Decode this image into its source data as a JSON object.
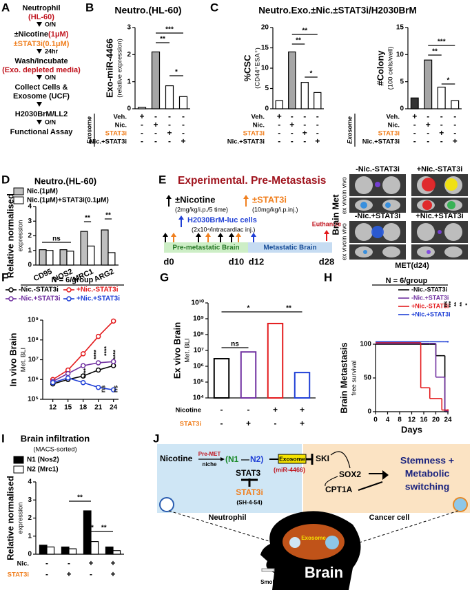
{
  "panel_labels": [
    "A",
    "B",
    "C",
    "D",
    "E",
    "F",
    "G",
    "H",
    "I",
    "J"
  ],
  "panel_a": {
    "steps": [
      "Neutrophil",
      "(HL-60)",
      "O/N",
      "±Nicotine",
      "(1μM)",
      "±STAT3i",
      "(0.1μM)",
      "24hr",
      "Wash/Incubate",
      "(Exo. depleted media)",
      "O/N",
      "Collect Cells &",
      "Exosome (UCF)",
      "H2030BrM/LL2",
      "O/N",
      "Functional Assay"
    ]
  },
  "panel_c": {
    "title": "Neutro.Exo.±Nic.±STAT3i/H2030BrM"
  },
  "panel_e": {
    "title": "Experimental. Pre-Metastasis",
    "nicotine": "±Nicotine",
    "nicotine_dose": "(2mg/kg/i.p./5 time)",
    "stat3i": "±STAT3i",
    "stat3i_dose": "(10mg/kg/i.p.inj.)",
    "cells": "H2030BrM-luc cells",
    "cells_dose": "(2x10⁴/intracardiac inj.)",
    "euthanize": "Euthanize",
    "phases": [
      "Pre-metastatic Brain",
      "Metastatic Brain"
    ],
    "days": [
      "d0",
      "d10",
      "d12",
      "d28"
    ],
    "groups": [
      "-Nic.-STAT3i",
      "+Nic.-STAT3i",
      "-Nic.+STAT3i",
      "+Nic.+STAT3i"
    ],
    "views": [
      "in vivo",
      "ex vivo"
    ],
    "side_label": "Brain Met",
    "caption": "MET(d24)"
  },
  "panel_j": {
    "nicotine": "Nicotine",
    "pre_met": "Pre-MET",
    "niche": "niche",
    "n1": "(N1",
    "n2": "N2)",
    "stat3": "STAT3",
    "stat3i": "STAT3i",
    "inhibitor": "(SH-4-54)",
    "exosome": "Exosome",
    "mirna": "(miR-4466)",
    "ski": "SKI",
    "sox2": "SOX2",
    "cpt1a": "CPT1A",
    "outcome": [
      "Stemness +",
      "Metabolic",
      "switching"
    ],
    "neutrophil": "Neutrophil",
    "cancer_cell": "Cancer cell",
    "brain": "Brain",
    "smoking": "Smoking"
  },
  "chart_data": [
    {
      "type": "bar",
      "title": "Neutro.(HL-60)",
      "ylabel": [
        "Exo-miR-4466",
        "(relative expression)"
      ],
      "values": [
        0.05,
        2.1,
        0.85,
        0.45
      ],
      "colors": [
        "#ffffff",
        "#a6a6a6",
        "#ffffff",
        "#ffffff"
      ],
      "ylim": [
        0,
        3
      ],
      "yticks": [
        0,
        1,
        2,
        3
      ],
      "annotations": [
        "***",
        "**",
        "*"
      ],
      "group_label": "Exosome",
      "conditions": [
        {
          "label": "Veh.",
          "signs": [
            "+",
            "-",
            "-",
            "-"
          ]
        },
        {
          "label": "Nic.",
          "signs": [
            "-",
            "+",
            "-",
            "-"
          ]
        },
        {
          "label": "STAT3i",
          "color": "#f07f1e",
          "signs": [
            "-",
            "-",
            "+",
            "-"
          ]
        },
        {
          "label": "Nic.+STAT3i",
          "signs": [
            "-",
            "-",
            "-",
            "+"
          ]
        }
      ]
    },
    {
      "type": "bar",
      "ylabel": [
        "%CSC",
        "(CD44⁺ESA⁺)"
      ],
      "values": [
        2,
        14,
        6.5,
        4
      ],
      "colors": [
        "#ffffff",
        "#a6a6a6",
        "#ffffff",
        "#ffffff"
      ],
      "ylim": [
        0,
        20
      ],
      "yticks": [
        0,
        5,
        10,
        15,
        20
      ],
      "annotations": [
        "**",
        "**",
        "*"
      ],
      "conditions": [
        {
          "label": "Veh.",
          "signs": [
            "+",
            "-",
            "-",
            "-"
          ]
        },
        {
          "label": "Nic.",
          "signs": [
            "-",
            "+",
            "-",
            "-"
          ]
        },
        {
          "label": "STAT3i",
          "color": "#f07f1e",
          "signs": [
            "-",
            "-",
            "+",
            "-"
          ]
        },
        {
          "label": "Nic.+STAT3i",
          "signs": [
            "-",
            "-",
            "-",
            "+"
          ]
        }
      ]
    },
    {
      "type": "bar",
      "ylabel": [
        "#Colony",
        "(100 cells/well)"
      ],
      "values": [
        2,
        9,
        4,
        1.5
      ],
      "colors": [
        "#333333",
        "#a6a6a6",
        "#ffffff",
        "#ffffff"
      ],
      "ylim": [
        0,
        15
      ],
      "yticks": [
        0,
        5,
        10,
        15
      ],
      "annotations": [
        "***",
        "**",
        "*"
      ],
      "group_label": "Exosome",
      "conditions": [
        {
          "label": "Veh.",
          "signs": [
            "+",
            "-",
            "-",
            "-"
          ]
        },
        {
          "label": "Nic.",
          "signs": [
            "-",
            "+",
            "-",
            "-"
          ]
        },
        {
          "label": "STAT3i",
          "color": "#f07f1e",
          "signs": [
            "-",
            "-",
            "+",
            "-"
          ]
        },
        {
          "label": "Nic.+STAT3i",
          "signs": [
            "-",
            "-",
            "-",
            "+"
          ]
        }
      ]
    },
    {
      "type": "bar",
      "title": "Neutro.(HL-60)",
      "ylabel": [
        "Relative normalised",
        "expression"
      ],
      "categories": [
        "CD95",
        "NOS2",
        "MRC1",
        "ARG2"
      ],
      "series": [
        {
          "name": "Nic.(1μM)",
          "color": "#bfbfbf",
          "values": [
            1.05,
            1.05,
            2.3,
            2.4
          ]
        },
        {
          "name": "Nic.(1μM)+STAT3i(0.1μM)",
          "color": "#ffffff",
          "values": [
            1.0,
            0.95,
            1.3,
            0.85
          ]
        }
      ],
      "ylim": [
        0,
        4
      ],
      "yticks": [
        0,
        1,
        2,
        3,
        4
      ],
      "annotations": [
        "ns",
        "**",
        "**"
      ]
    },
    {
      "type": "line",
      "title": "N = 6/group",
      "ylabel": [
        "In vivo Brain",
        "Met. BLI"
      ],
      "log": true,
      "x": [
        12,
        15,
        18,
        21,
        24
      ],
      "xlim": [
        10,
        25
      ],
      "xticks": [
        12,
        15,
        18,
        21,
        24
      ],
      "ylim": [
        100000,
        1000000000
      ],
      "yticks": [
        {
          "value": 100000,
          "label": "10⁵"
        },
        {
          "value": 1000000,
          "label": "10⁶"
        },
        {
          "value": 10000000,
          "label": "10⁷"
        },
        {
          "value": 100000000,
          "label": "10⁸"
        },
        {
          "value": 1000000000,
          "label": "10⁹"
        }
      ],
      "series": [
        {
          "name": "-Nic.-STAT3i",
          "color": "#000000",
          "values": [
            600000,
            1000000,
            1500000,
            3000000,
            5000000
          ]
        },
        {
          "name": "+Nic.-STAT3i",
          "color": "#e31a1c",
          "values": [
            1000000,
            3000000,
            20000000,
            150000000,
            900000000
          ]
        },
        {
          "name": "-Nic.+STAT3i",
          "color": "#7030a0",
          "values": [
            800000,
            2000000,
            5000000,
            7000000,
            8000000
          ]
        },
        {
          "name": "+Nic.+STAT3i",
          "color": "#1f3fd6",
          "values": [
            700000,
            1200000,
            700000,
            400000,
            300000
          ]
        }
      ],
      "annotations": [
        "****",
        "****",
        "****",
        "****",
        "ns",
        "ns"
      ]
    },
    {
      "type": "bar",
      "ylabel": [
        "Ex vivo Brain",
        "Met. BLI"
      ],
      "log": true,
      "values": [
        3000000,
        8000000,
        500000000,
        400000
      ],
      "colors": [
        "#ffffff",
        "#ffffff",
        "#ffffff",
        "#ffffff"
      ],
      "outlines": [
        "#000000",
        "#7030a0",
        "#e31a1c",
        "#1f3fd6"
      ],
      "ylim": [
        10000,
        10000000000
      ],
      "yticks": [
        {
          "value": 10000,
          "label": "10⁴"
        },
        {
          "value": 100000,
          "label": "10⁵"
        },
        {
          "value": 1000000,
          "label": "10⁶"
        },
        {
          "value": 10000000,
          "label": "10⁷"
        },
        {
          "value": 100000000,
          "label": "10⁸"
        },
        {
          "value": 1000000000,
          "label": "10⁹"
        },
        {
          "value": 10000000000,
          "label": "10¹⁰"
        }
      ],
      "annotations": [
        "*",
        "ns",
        "**"
      ],
      "conditions": [
        {
          "label": "Nicotine",
          "signs": [
            "-",
            "-",
            "+",
            "+"
          ]
        },
        {
          "label": "STAT3i",
          "color": "#f07f1e",
          "signs": [
            "-",
            "+",
            "-",
            "+"
          ]
        }
      ]
    },
    {
      "type": "step",
      "title": "N = 6/group",
      "ylabel": [
        "Brain Metastasis",
        "free survival"
      ],
      "xlabel": "Days",
      "x": [
        0,
        15,
        18,
        20,
        22,
        23,
        24
      ],
      "xlim": [
        0,
        24
      ],
      "xticks": [
        0,
        4,
        8,
        12,
        16,
        20,
        24
      ],
      "ylim": [
        0,
        100
      ],
      "yticks": [
        0,
        50,
        100
      ],
      "series": [
        {
          "name": "-Nic.-STAT3i",
          "color": "#000000",
          "values": [
            100,
            100,
            100,
            83,
            83,
            0,
            0
          ]
        },
        {
          "name": "-Nic.+STAT3i",
          "color": "#7030a0",
          "values": [
            100,
            100,
            100,
            50,
            50,
            0,
            0
          ]
        },
        {
          "name": "+Nic.-STAT3i",
          "color": "#e31a1c",
          "values": [
            100,
            33,
            17,
            17,
            0,
            0,
            0
          ]
        },
        {
          "name": "+Nic.+STAT3i",
          "color": "#1f3fd6",
          "values": [
            100,
            100,
            100,
            100,
            100,
            100,
            100
          ]
        }
      ],
      "annotations": [
        "ns",
        "***",
        "**",
        "**",
        "*"
      ]
    },
    {
      "type": "bar",
      "title": "Brain infiltration",
      "subtitle": "(MACS-sorted)",
      "ylabel": [
        "Relative normalised",
        "expression"
      ],
      "categories": [
        null,
        null,
        null,
        null
      ],
      "series": [
        {
          "name": "N1 (Nos2)",
          "color": "#000000",
          "values": [
            0.5,
            0.4,
            2.4,
            0.4
          ]
        },
        {
          "name": "N2 (Mrc1)",
          "color": "#ffffff",
          "values": [
            0.4,
            0.3,
            0.7,
            0.2
          ]
        }
      ],
      "ylim": [
        0,
        4
      ],
      "yticks": [
        0,
        1,
        2,
        3,
        4
      ],
      "annotations": [
        "**",
        "**",
        "**"
      ],
      "conditions": [
        {
          "label": "Nic.",
          "signs": [
            "-",
            "-",
            "+",
            "+"
          ]
        },
        {
          "label": "STAT3i",
          "color": "#f07f1e",
          "signs": [
            "-",
            "+",
            "-",
            "+"
          ]
        }
      ]
    }
  ]
}
